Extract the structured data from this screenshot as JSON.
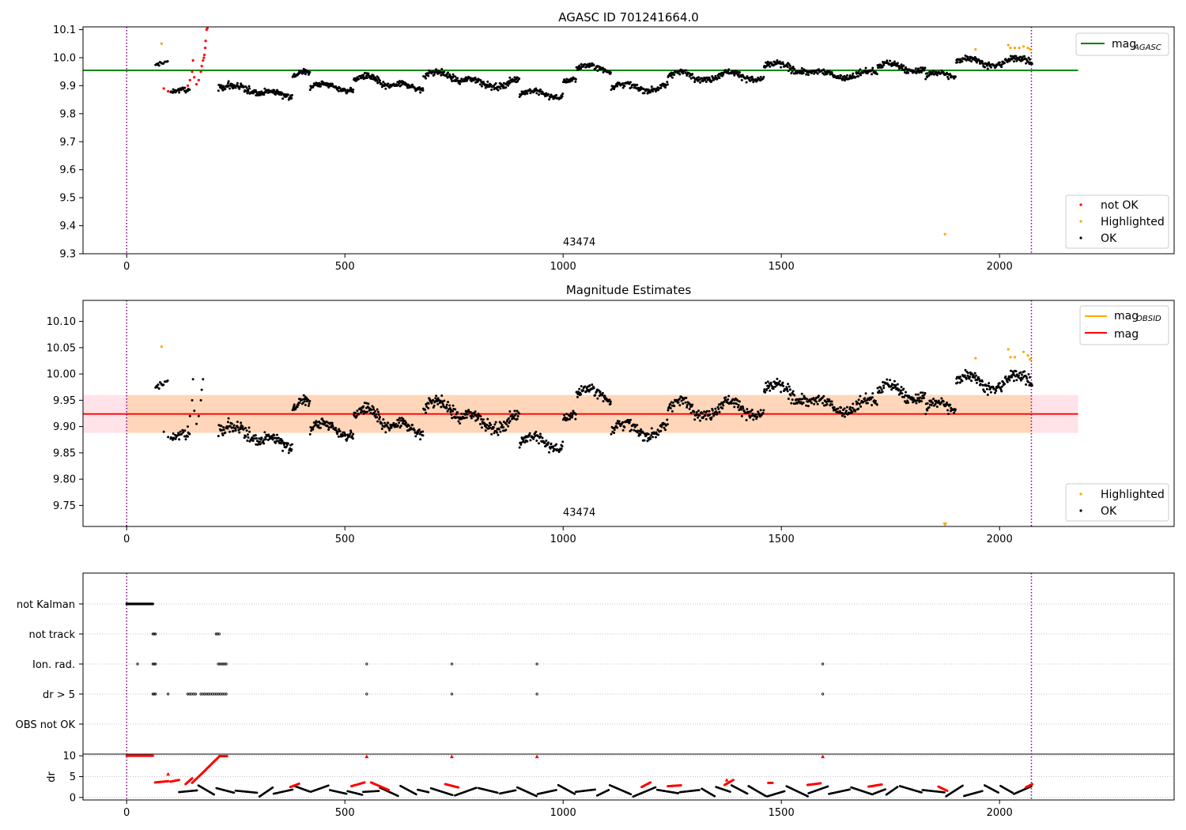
{
  "chart_data": [
    {
      "type": "scatter",
      "title": "AGASC ID 701241664.0",
      "xlim": [
        -100,
        2400
      ],
      "ylim": [
        9.3,
        10.11
      ],
      "xticks": [
        0,
        500,
        1000,
        1500,
        2000
      ],
      "yticks": [
        9.3,
        9.4,
        9.5,
        9.6,
        9.7,
        9.8,
        9.9,
        10.0,
        10.1
      ],
      "mag_agasc": 9.955,
      "vlines": [
        0,
        2073
      ],
      "annotation": {
        "text": "43474",
        "x": 1037,
        "y": 9.33
      },
      "legend_top": [
        {
          "label": "mag",
          "sub": "AGASC",
          "color": "#008000"
        }
      ],
      "legend_bottom": [
        {
          "label": "not OK",
          "color": "#ff0000"
        },
        {
          "label": "Highlighted",
          "color": "#ffa500"
        },
        {
          "label": "OK",
          "color": "#000000"
        }
      ],
      "segments": [
        {
          "x0": 65,
          "x1": 95,
          "base": 9.97,
          "amp": 0.015,
          "noise": 0.012,
          "n": 14
        },
        {
          "x0": 100,
          "x1": 145,
          "base": 9.875,
          "amp": 0.01,
          "noise": 0.012,
          "n": 30
        },
        {
          "x0": 210,
          "x1": 300,
          "base": 9.89,
          "amp": 0.01,
          "noise": 0.016,
          "n": 70
        },
        {
          "x0": 300,
          "x1": 380,
          "base": 9.87,
          "amp": 0.01,
          "noise": 0.012,
          "n": 70
        },
        {
          "x0": 380,
          "x1": 420,
          "base": 9.93,
          "amp": 0.02,
          "noise": 0.012,
          "n": 35
        },
        {
          "x0": 420,
          "x1": 520,
          "base": 9.895,
          "amp": 0.012,
          "noise": 0.012,
          "n": 80
        },
        {
          "x0": 520,
          "x1": 600,
          "base": 9.915,
          "amp": 0.02,
          "noise": 0.015,
          "n": 70
        },
        {
          "x0": 600,
          "x1": 680,
          "base": 9.895,
          "amp": 0.012,
          "noise": 0.012,
          "n": 65
        },
        {
          "x0": 680,
          "x1": 760,
          "base": 9.935,
          "amp": 0.015,
          "noise": 0.014,
          "n": 70
        },
        {
          "x0": 760,
          "x1": 900,
          "base": 9.91,
          "amp": 0.015,
          "noise": 0.013,
          "n": 110
        },
        {
          "x0": 900,
          "x1": 1000,
          "base": 9.87,
          "amp": 0.012,
          "noise": 0.012,
          "n": 80
        },
        {
          "x0": 1000,
          "x1": 1030,
          "base": 9.91,
          "amp": 0.015,
          "noise": 0.012,
          "n": 25
        },
        {
          "x0": 1030,
          "x1": 1110,
          "base": 9.96,
          "amp": 0.012,
          "noise": 0.012,
          "n": 70
        },
        {
          "x0": 1110,
          "x1": 1240,
          "base": 9.895,
          "amp": 0.012,
          "noise": 0.013,
          "n": 100
        },
        {
          "x0": 1240,
          "x1": 1460,
          "base": 9.935,
          "amp": 0.015,
          "noise": 0.013,
          "n": 170
        },
        {
          "x0": 1460,
          "x1": 1560,
          "base": 9.965,
          "amp": 0.015,
          "noise": 0.014,
          "n": 80
        },
        {
          "x0": 1560,
          "x1": 1720,
          "base": 9.94,
          "amp": 0.012,
          "noise": 0.013,
          "n": 120
        },
        {
          "x0": 1720,
          "x1": 1830,
          "base": 9.965,
          "amp": 0.015,
          "noise": 0.013,
          "n": 90
        },
        {
          "x0": 1830,
          "x1": 1900,
          "base": 9.935,
          "amp": 0.012,
          "noise": 0.012,
          "n": 55
        },
        {
          "x0": 1900,
          "x1": 2075,
          "base": 9.985,
          "amp": 0.015,
          "noise": 0.013,
          "n": 140
        }
      ],
      "not_ok_points": [
        [
          85,
          9.89
        ],
        [
          95,
          9.88
        ],
        [
          140,
          9.9
        ],
        [
          145,
          9.92
        ],
        [
          150,
          9.95
        ],
        [
          152,
          9.99
        ],
        [
          155,
          9.93
        ],
        [
          160,
          9.905
        ],
        [
          165,
          9.92
        ],
        [
          170,
          9.95
        ],
        [
          172,
          9.97
        ],
        [
          175,
          9.99
        ],
        [
          177,
          10.0
        ],
        [
          178,
          10.01
        ],
        [
          180,
          10.035
        ],
        [
          181,
          10.06
        ],
        [
          183,
          10.1
        ],
        [
          185,
          10.105
        ]
      ],
      "highlighted_points": [
        [
          80,
          10.05
        ],
        [
          1875,
          9.37
        ],
        [
          1945,
          10.03
        ],
        [
          2020,
          10.045
        ],
        [
          2025,
          10.035
        ],
        [
          2035,
          10.035
        ],
        [
          2045,
          10.035
        ],
        [
          2055,
          10.04
        ],
        [
          2065,
          10.035
        ],
        [
          2070,
          10.03
        ]
      ]
    },
    {
      "type": "scatter",
      "title": "Magnitude Estimates",
      "xlim": [
        -100,
        2400
      ],
      "ylim": [
        9.71,
        10.14
      ],
      "xticks": [
        0,
        500,
        1000,
        1500,
        2000
      ],
      "yticks": [
        9.75,
        9.8,
        9.85,
        9.9,
        9.95,
        10.0,
        10.05,
        10.1
      ],
      "mag": 9.924,
      "mag_band": [
        9.888,
        9.96
      ],
      "vlines": [
        0,
        2073
      ],
      "annotation": {
        "text": "43474",
        "x": 1037,
        "y": 9.73
      },
      "legend_top": [
        {
          "label": "mag",
          "sub": "OBSID",
          "color": "#ffa500"
        },
        {
          "label": "mag",
          "sub": "",
          "color": "#ff0000"
        }
      ],
      "legend_bottom": [
        {
          "label": "Highlighted",
          "color": "#ffa500"
        },
        {
          "label": "OK",
          "color": "#000000"
        }
      ],
      "highlighted_points": [
        [
          80,
          10.052
        ],
        [
          1945,
          10.03
        ],
        [
          2020,
          10.047
        ],
        [
          2025,
          10.032
        ],
        [
          2035,
          10.032
        ],
        [
          2055,
          10.042
        ],
        [
          2065,
          10.035
        ],
        [
          2070,
          10.028
        ]
      ],
      "offscale_marker": {
        "x": 1875,
        "y": 9.713
      }
    },
    {
      "type": "scatter",
      "title": "",
      "xlim": [
        -100,
        2400
      ],
      "xticks": [
        0,
        500,
        1000,
        1500,
        2000
      ],
      "flags": [
        "not Kalman",
        "not track",
        "Ion. rad.",
        "dr > 5",
        "OBS not OK"
      ],
      "vlines": [
        0,
        2073
      ],
      "flag_points": {
        "not Kalman": [
          [
            0,
            60,
            36
          ]
        ],
        "not track": [
          [
            60,
            66,
            3
          ],
          [
            205,
            212,
            3
          ]
        ],
        "Ion. rad.": [
          [
            25,
            25,
            1
          ],
          [
            60,
            66,
            3
          ],
          [
            210,
            228,
            6
          ],
          [
            550,
            550,
            1
          ],
          [
            745,
            745,
            1
          ],
          [
            940,
            940,
            1
          ],
          [
            1595,
            1595,
            1
          ]
        ],
        "dr > 5": [
          [
            60,
            66,
            3
          ],
          [
            95,
            95,
            1
          ],
          [
            140,
            158,
            5
          ],
          [
            170,
            228,
            14
          ],
          [
            550,
            550,
            1
          ],
          [
            745,
            745,
            1
          ],
          [
            940,
            940,
            1
          ],
          [
            1595,
            1595,
            1
          ]
        ],
        "OBS not OK": []
      },
      "dr_axis": {
        "ylabel": "dr",
        "yticks": [
          0,
          5,
          10
        ],
        "ylim": [
          -0.6,
          10.4
        ],
        "clip_value": 10
      },
      "dr_red_runs": [
        [
          0,
          60,
          10,
          10
        ],
        [
          65,
          95,
          3.6,
          3.9
        ],
        [
          100,
          120,
          3.8,
          4.2
        ],
        [
          135,
          150,
          3.2,
          4.6
        ],
        [
          150,
          175,
          3.5,
          6.0
        ],
        [
          175,
          200,
          6.0,
          8.6
        ],
        [
          200,
          212,
          8.6,
          9.8
        ],
        [
          212,
          230,
          9.9,
          9.9
        ],
        [
          375,
          395,
          2.5,
          3.3
        ],
        [
          515,
          545,
          2.7,
          3.6
        ],
        [
          560,
          600,
          3.6,
          1.8
        ],
        [
          730,
          760,
          3.2,
          2.4
        ],
        [
          1180,
          1200,
          2.5,
          3.6
        ],
        [
          1240,
          1270,
          2.7,
          2.9
        ],
        [
          1370,
          1390,
          3.0,
          4.2
        ],
        [
          1470,
          1480,
          3.5,
          3.5
        ],
        [
          1560,
          1590,
          3.0,
          3.4
        ],
        [
          1700,
          1730,
          2.6,
          3.1
        ],
        [
          1860,
          1880,
          2.6,
          1.6
        ],
        [
          2060,
          2075,
          2.4,
          3.2
        ]
      ],
      "dr_red_singles": [
        [
          550,
          9.8
        ],
        [
          745,
          9.8
        ],
        [
          940,
          9.8
        ],
        [
          1595,
          9.8
        ],
        [
          95,
          5.6
        ],
        [
          1375,
          4.2
        ]
      ]
    }
  ]
}
